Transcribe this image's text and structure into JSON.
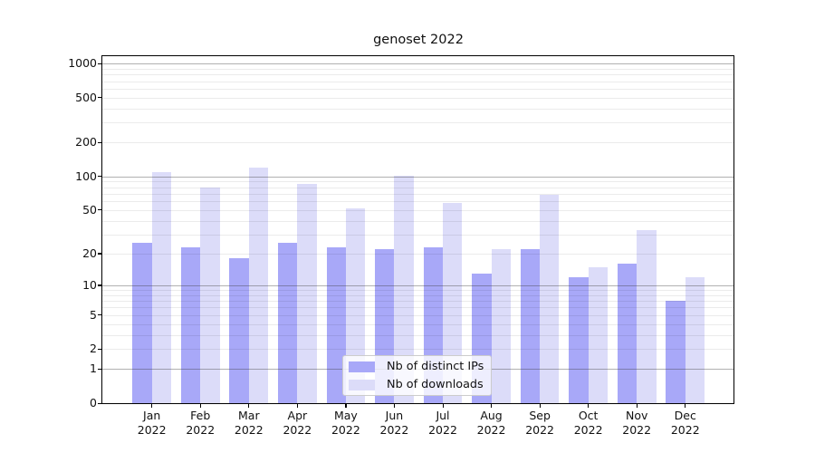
{
  "chart_data": {
    "type": "bar",
    "title": "genoset 2022",
    "categories": [
      "Jan",
      "Feb",
      "Mar",
      "Apr",
      "May",
      "Jun",
      "Jul",
      "Aug",
      "Sep",
      "Oct",
      "Nov",
      "Dec"
    ],
    "category_year": "2022",
    "series": [
      {
        "name": "Nb of distinct IPs",
        "color": "#a8a8f8",
        "values": [
          25,
          23,
          18,
          25,
          23,
          22,
          23,
          13,
          22,
          12,
          16,
          7
        ]
      },
      {
        "name": "Nb of downloads",
        "color": "#dcdcf9",
        "values": [
          110,
          80,
          120,
          85,
          52,
          102,
          58,
          22,
          68,
          15,
          33,
          12
        ]
      }
    ],
    "ylabel": "",
    "xlabel": "",
    "y_ticks": [
      1000,
      500,
      200,
      100,
      50,
      20,
      10,
      5,
      2,
      1,
      0
    ],
    "y_minor_gridlines": [
      2,
      3,
      4,
      5,
      6,
      7,
      8,
      9,
      20,
      30,
      40,
      50,
      60,
      70,
      80,
      90,
      200,
      300,
      400,
      500,
      600,
      700,
      800,
      900
    ],
    "y_major_gridlines": [
      1,
      10,
      100,
      1000
    ],
    "y_scale": "log10(1+v)",
    "ylim": [
      0,
      1186
    ],
    "grid": true,
    "legend_position": "lower center",
    "colors": {
      "grid_major": "#b4b4b4",
      "grid_minor": "#ebebeb",
      "spine": "#000000",
      "text": "#111111"
    }
  }
}
